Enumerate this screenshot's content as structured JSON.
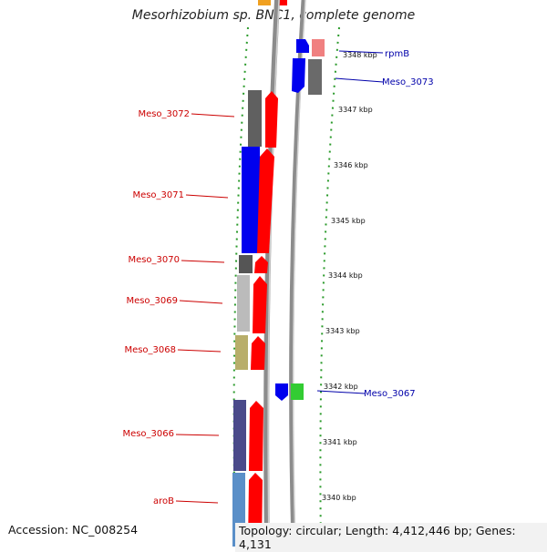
{
  "title": "Mesorhizobium sp. BNC1, complete genome",
  "footer": {
    "accession": "Accession: NC_008254",
    "topology": "Topology: circular; Length: 4,412,446 bp; Genes: 4,131"
  },
  "colors": {
    "reverse_label": "#cc0000",
    "forward_label": "#0000aa",
    "backbone": "#8c8c8c",
    "cds": "#ff0000",
    "dots": "#2a9a2a"
  },
  "scale_ticks": [
    "3348 kbp",
    "3347 kbp",
    "3346 kbp",
    "3345 kbp",
    "3344 kbp",
    "3343 kbp",
    "3342 kbp",
    "3341 kbp",
    "3340 kbp"
  ],
  "reverse_genes": [
    {
      "name": "Meso_3072",
      "color": "#606060"
    },
    {
      "name": "Meso_3071",
      "color": "#0000ee"
    },
    {
      "name": "Meso_3070",
      "color": "#555555"
    },
    {
      "name": "Meso_3069",
      "color": "#bbbbbb"
    },
    {
      "name": "Meso_3068",
      "color": "#b8ae6a"
    },
    {
      "name": "Meso_3066",
      "color": "#4a4a8a"
    },
    {
      "name": "aroB",
      "color": "#5a8fc8"
    }
  ],
  "forward_genes": [
    {
      "name": "rpmB",
      "color": "#f08080"
    },
    {
      "name": "Meso_3073",
      "color": "#6a6a6a"
    },
    {
      "name": "Meso_3067",
      "color": "#33cc33"
    }
  ]
}
